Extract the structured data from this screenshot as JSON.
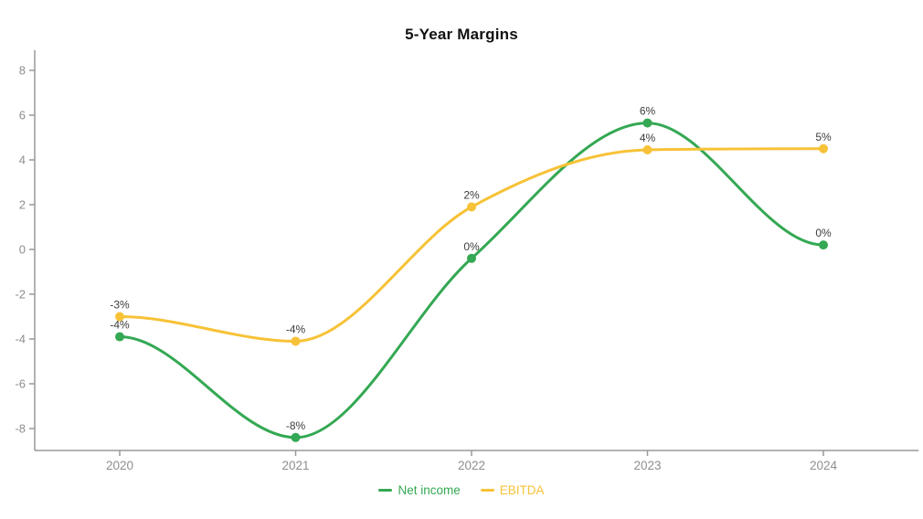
{
  "page": {
    "background": "#ffffff"
  },
  "chart_data": {
    "type": "line",
    "title": "5-Year Margins",
    "xlabel": "",
    "ylabel": "",
    "categories": [
      "2020",
      "2021",
      "2022",
      "2023",
      "2024"
    ],
    "series": [
      {
        "name": "Net income",
        "color": "#34a853",
        "values": [
          -4,
          -8,
          0,
          6,
          0
        ],
        "values_precise": [
          -3.9,
          -8.4,
          -0.4,
          5.65,
          0.2
        ],
        "point_labels": [
          "-4%",
          "-8%",
          "0%",
          "6%",
          "0%"
        ]
      },
      {
        "name": "EBITDA",
        "color": "#f7c237",
        "values": [
          -3,
          -4,
          2,
          4,
          5
        ],
        "values_precise": [
          -3.0,
          -4.1,
          1.9,
          4.45,
          4.5
        ],
        "point_labels": [
          "-3%",
          "-4%",
          "2%",
          "4%",
          "5%"
        ]
      }
    ],
    "y_ticks": [
      8,
      6,
      4,
      2,
      0,
      -2,
      -4,
      -6,
      -8
    ],
    "ylim": [
      -9,
      8.9
    ],
    "grid": false,
    "smoothing": "monotone",
    "legend_position": "bottom",
    "colors": {
      "axis": "#999999",
      "tick_label": "#8e8e8e",
      "point_label": "#3c3c3c",
      "title": "#111111"
    }
  }
}
